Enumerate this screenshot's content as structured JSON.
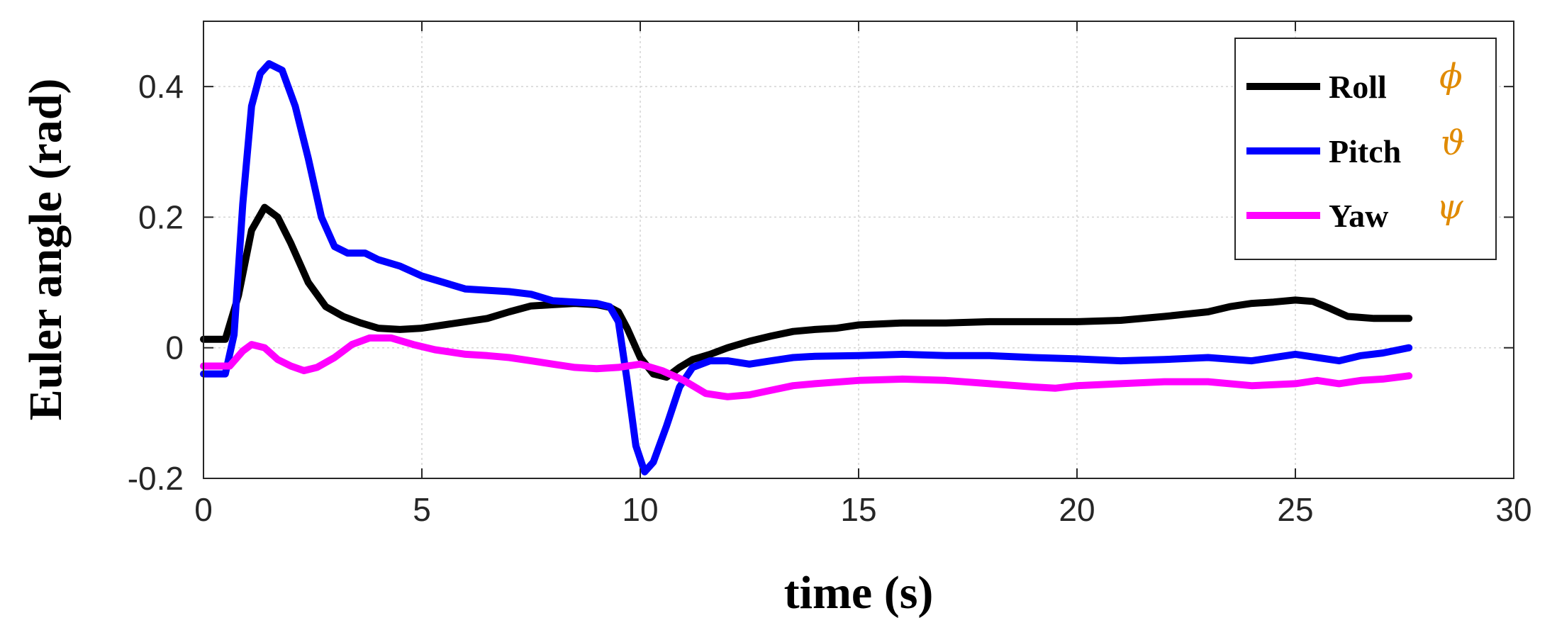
{
  "chart_data": {
    "type": "line",
    "xlabel": "time (s)",
    "ylabel": "Euler angle (rad)",
    "xlim": [
      0,
      30
    ],
    "ylim": [
      -0.2,
      0.5
    ],
    "xticks": [
      "0",
      "5",
      "10",
      "15",
      "20",
      "25",
      "30"
    ],
    "yticks": [
      "-0.2",
      "0",
      "0.2",
      "0.4"
    ],
    "grid": true,
    "legend_position": "top-right",
    "series": [
      {
        "name": "Roll",
        "symbol": "ϕ",
        "color": "#000000",
        "points": [
          [
            0,
            0.013
          ],
          [
            0.5,
            0.013
          ],
          [
            0.8,
            0.08
          ],
          [
            1.1,
            0.18
          ],
          [
            1.4,
            0.215
          ],
          [
            1.7,
            0.2
          ],
          [
            2.0,
            0.16
          ],
          [
            2.4,
            0.1
          ],
          [
            2.8,
            0.063
          ],
          [
            3.2,
            0.048
          ],
          [
            3.6,
            0.038
          ],
          [
            4.0,
            0.03
          ],
          [
            4.5,
            0.028
          ],
          [
            5.0,
            0.03
          ],
          [
            5.5,
            0.035
          ],
          [
            6.0,
            0.04
          ],
          [
            6.5,
            0.045
          ],
          [
            7.0,
            0.055
          ],
          [
            7.5,
            0.064
          ],
          [
            8.0,
            0.066
          ],
          [
            8.5,
            0.068
          ],
          [
            9.0,
            0.066
          ],
          [
            9.3,
            0.062
          ],
          [
            9.5,
            0.055
          ],
          [
            9.7,
            0.03
          ],
          [
            10.0,
            -0.015
          ],
          [
            10.3,
            -0.04
          ],
          [
            10.6,
            -0.045
          ],
          [
            10.9,
            -0.03
          ],
          [
            11.2,
            -0.018
          ],
          [
            11.6,
            -0.01
          ],
          [
            12.0,
            0.0
          ],
          [
            12.5,
            0.01
          ],
          [
            13.0,
            0.018
          ],
          [
            13.5,
            0.025
          ],
          [
            14.0,
            0.028
          ],
          [
            14.5,
            0.03
          ],
          [
            15.0,
            0.035
          ],
          [
            16.0,
            0.038
          ],
          [
            17.0,
            0.038
          ],
          [
            18.0,
            0.04
          ],
          [
            19.0,
            0.04
          ],
          [
            20.0,
            0.04
          ],
          [
            21.0,
            0.042
          ],
          [
            22.0,
            0.048
          ],
          [
            23.0,
            0.055
          ],
          [
            23.5,
            0.063
          ],
          [
            24.0,
            0.068
          ],
          [
            24.5,
            0.07
          ],
          [
            25.0,
            0.073
          ],
          [
            25.4,
            0.071
          ],
          [
            25.8,
            0.06
          ],
          [
            26.2,
            0.048
          ],
          [
            26.8,
            0.045
          ],
          [
            27.6,
            0.045
          ]
        ]
      },
      {
        "name": "Pitch",
        "symbol": "ϑ",
        "color": "#0000ff",
        "points": [
          [
            0,
            -0.04
          ],
          [
            0.5,
            -0.04
          ],
          [
            0.7,
            0.02
          ],
          [
            0.9,
            0.22
          ],
          [
            1.1,
            0.37
          ],
          [
            1.3,
            0.42
          ],
          [
            1.5,
            0.435
          ],
          [
            1.8,
            0.425
          ],
          [
            2.1,
            0.37
          ],
          [
            2.4,
            0.29
          ],
          [
            2.7,
            0.2
          ],
          [
            3.0,
            0.155
          ],
          [
            3.3,
            0.145
          ],
          [
            3.7,
            0.145
          ],
          [
            4.0,
            0.135
          ],
          [
            4.5,
            0.125
          ],
          [
            5.0,
            0.11
          ],
          [
            5.5,
            0.1
          ],
          [
            6.0,
            0.09
          ],
          [
            6.5,
            0.088
          ],
          [
            7.0,
            0.086
          ],
          [
            7.5,
            0.082
          ],
          [
            8.0,
            0.072
          ],
          [
            8.5,
            0.07
          ],
          [
            9.0,
            0.068
          ],
          [
            9.3,
            0.063
          ],
          [
            9.5,
            0.04
          ],
          [
            9.7,
            -0.05
          ],
          [
            9.9,
            -0.15
          ],
          [
            10.1,
            -0.19
          ],
          [
            10.3,
            -0.175
          ],
          [
            10.6,
            -0.12
          ],
          [
            10.9,
            -0.06
          ],
          [
            11.2,
            -0.03
          ],
          [
            11.6,
            -0.02
          ],
          [
            12.0,
            -0.02
          ],
          [
            12.5,
            -0.025
          ],
          [
            13.0,
            -0.02
          ],
          [
            13.5,
            -0.015
          ],
          [
            14.0,
            -0.013
          ],
          [
            15.0,
            -0.012
          ],
          [
            16.0,
            -0.01
          ],
          [
            17.0,
            -0.012
          ],
          [
            18.0,
            -0.012
          ],
          [
            19.0,
            -0.015
          ],
          [
            20.0,
            -0.017
          ],
          [
            21.0,
            -0.02
          ],
          [
            22.0,
            -0.018
          ],
          [
            23.0,
            -0.015
          ],
          [
            24.0,
            -0.02
          ],
          [
            25.0,
            -0.01
          ],
          [
            25.5,
            -0.015
          ],
          [
            26.0,
            -0.02
          ],
          [
            26.5,
            -0.012
          ],
          [
            27.0,
            -0.008
          ],
          [
            27.6,
            0.0
          ]
        ]
      },
      {
        "name": "Yaw",
        "symbol": "ψ",
        "color": "#ff00ff",
        "points": [
          [
            0,
            -0.028
          ],
          [
            0.6,
            -0.028
          ],
          [
            0.9,
            -0.005
          ],
          [
            1.1,
            0.005
          ],
          [
            1.4,
            0.0
          ],
          [
            1.7,
            -0.018
          ],
          [
            2.0,
            -0.028
          ],
          [
            2.3,
            -0.035
          ],
          [
            2.6,
            -0.03
          ],
          [
            3.0,
            -0.015
          ],
          [
            3.4,
            0.005
          ],
          [
            3.8,
            0.015
          ],
          [
            4.3,
            0.015
          ],
          [
            4.8,
            0.005
          ],
          [
            5.3,
            -0.003
          ],
          [
            6.0,
            -0.01
          ],
          [
            6.5,
            -0.012
          ],
          [
            7.0,
            -0.015
          ],
          [
            7.5,
            -0.02
          ],
          [
            8.0,
            -0.025
          ],
          [
            8.5,
            -0.03
          ],
          [
            9.0,
            -0.032
          ],
          [
            9.5,
            -0.03
          ],
          [
            10.0,
            -0.025
          ],
          [
            10.5,
            -0.035
          ],
          [
            11.0,
            -0.05
          ],
          [
            11.5,
            -0.07
          ],
          [
            12.0,
            -0.075
          ],
          [
            12.5,
            -0.072
          ],
          [
            13.0,
            -0.065
          ],
          [
            13.5,
            -0.058
          ],
          [
            14.0,
            -0.055
          ],
          [
            15.0,
            -0.05
          ],
          [
            16.0,
            -0.048
          ],
          [
            17.0,
            -0.05
          ],
          [
            18.0,
            -0.055
          ],
          [
            19.0,
            -0.06
          ],
          [
            19.5,
            -0.062
          ],
          [
            20.0,
            -0.058
          ],
          [
            21.0,
            -0.055
          ],
          [
            22.0,
            -0.052
          ],
          [
            23.0,
            -0.052
          ],
          [
            24.0,
            -0.058
          ],
          [
            25.0,
            -0.055
          ],
          [
            25.5,
            -0.05
          ],
          [
            26.0,
            -0.055
          ],
          [
            26.5,
            -0.05
          ],
          [
            27.0,
            -0.048
          ],
          [
            27.6,
            -0.043
          ]
        ]
      }
    ]
  }
}
